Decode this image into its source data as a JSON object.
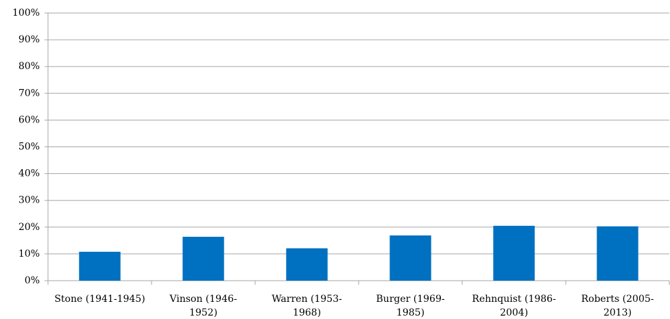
{
  "chart_data": {
    "type": "bar",
    "categories": [
      "Stone (1941-1945)",
      "Vinson (1946-1952)",
      "Warren (1953-1968)",
      "Burger (1969-1985)",
      "Rehnquist (1986-2004)",
      "Roberts (2005-2013)"
    ],
    "values": [
      10.8,
      16.4,
      12.1,
      16.9,
      20.5,
      20.3
    ],
    "color": "#0070c0",
    "ylim": [
      0,
      100
    ],
    "yticks": [
      {
        "value": 0,
        "label": "0%"
      },
      {
        "value": 10,
        "label": "10%"
      },
      {
        "value": 20,
        "label": "20%"
      },
      {
        "value": 30,
        "label": "30%"
      },
      {
        "value": 40,
        "label": "40%"
      },
      {
        "value": 50,
        "label": "50%"
      },
      {
        "value": 60,
        "label": "60%"
      },
      {
        "value": 70,
        "label": "70%"
      },
      {
        "value": 80,
        "label": "80%"
      },
      {
        "value": 90,
        "label": "90%"
      },
      {
        "value": 100,
        "label": "100%"
      }
    ],
    "grid": true
  }
}
